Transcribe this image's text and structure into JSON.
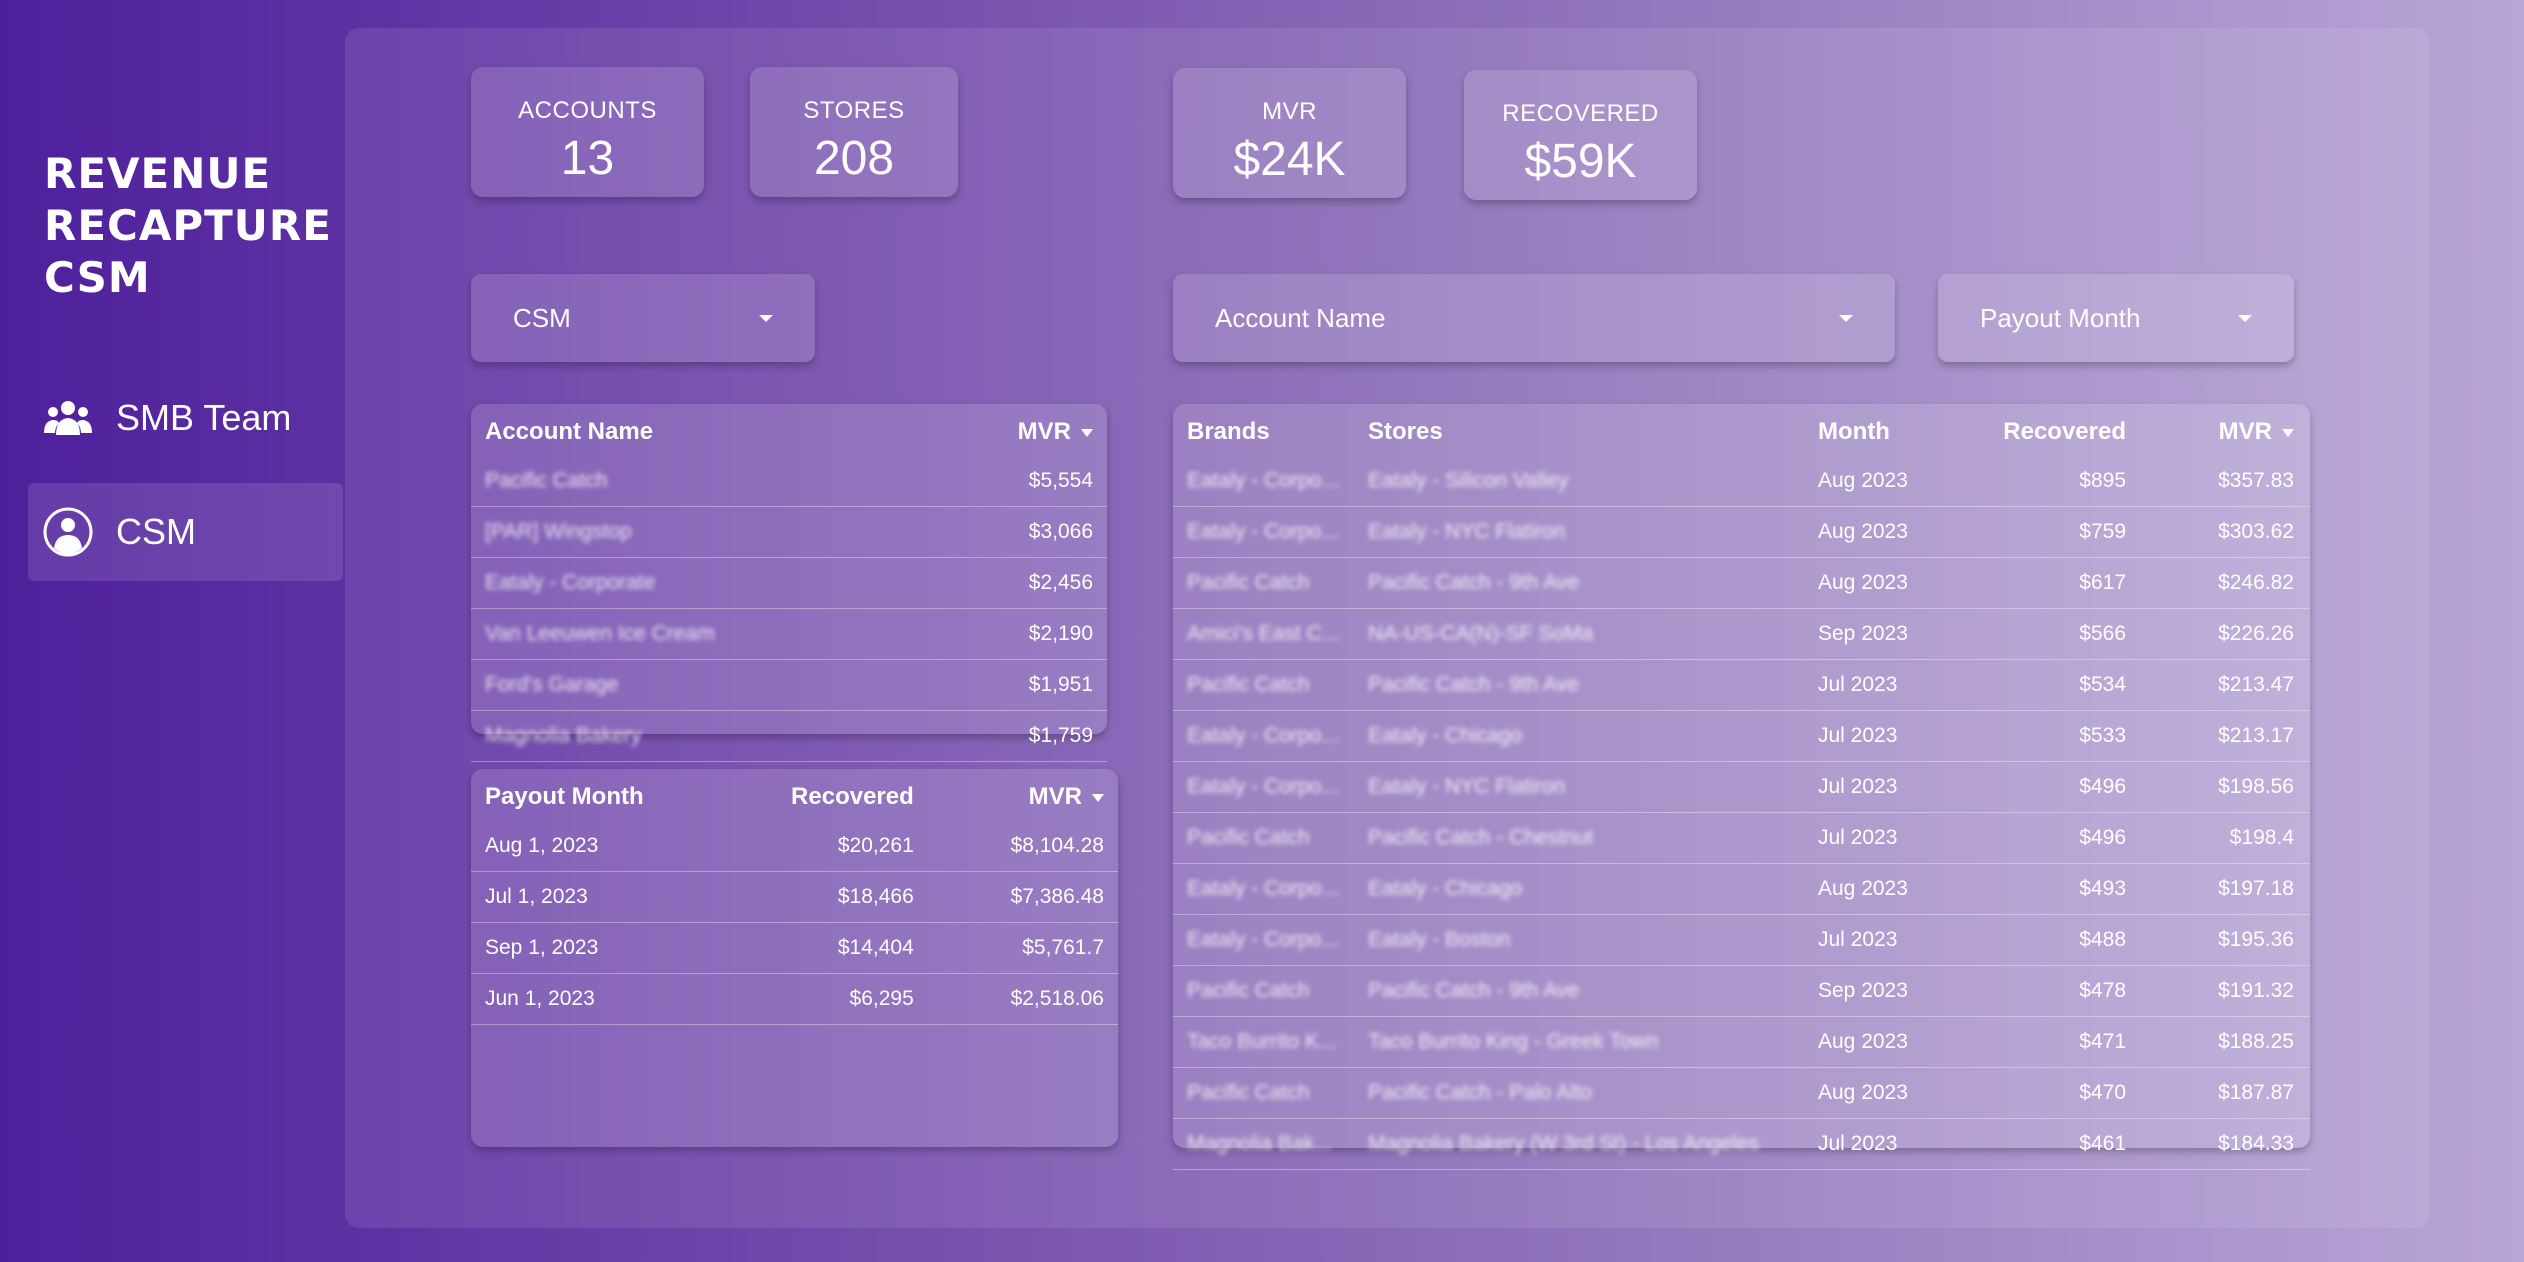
{
  "app": {
    "title": "REVENUE RECAPTURE CSM"
  },
  "nav": {
    "items": [
      {
        "label": "SMB Team",
        "icon": "users-icon"
      },
      {
        "label": "CSM",
        "icon": "user-circle-icon"
      }
    ]
  },
  "kpis": {
    "accounts": {
      "label": "ACCOUNTS",
      "value": "13"
    },
    "stores": {
      "label": "STORES",
      "value": "208"
    },
    "mvr": {
      "label": "MVR",
      "value": "$24K"
    },
    "recovered": {
      "label": "RECOVERED",
      "value": "$59K"
    }
  },
  "filters": {
    "csm": {
      "label": "CSM"
    },
    "account": {
      "label": "Account Name"
    },
    "payout": {
      "label": "Payout Month"
    }
  },
  "account_table": {
    "headers": {
      "account": "Account Name",
      "mvr": "MVR"
    },
    "rows": [
      {
        "account": "Pacific Catch",
        "mvr": "$5,554"
      },
      {
        "account": "[PAR] Wingstop",
        "mvr": "$3,066"
      },
      {
        "account": "Eataly - Corporate",
        "mvr": "$2,456"
      },
      {
        "account": "Van Leeuwen Ice Cream",
        "mvr": "$2,190"
      },
      {
        "account": "Ford's Garage",
        "mvr": "$1,951"
      },
      {
        "account": "Magnolia Bakery",
        "mvr": "$1,759"
      }
    ]
  },
  "payout_table": {
    "headers": {
      "month": "Payout Month",
      "recovered": "Recovered",
      "mvr": "MVR"
    },
    "rows": [
      {
        "month": "Aug 1, 2023",
        "recovered": "$20,261",
        "mvr": "$8,104.28"
      },
      {
        "month": "Jul 1, 2023",
        "recovered": "$18,466",
        "mvr": "$7,386.48"
      },
      {
        "month": "Sep 1, 2023",
        "recovered": "$14,404",
        "mvr": "$5,761.7"
      },
      {
        "month": "Jun 1, 2023",
        "recovered": "$6,295",
        "mvr": "$2,518.06"
      }
    ]
  },
  "store_table": {
    "headers": {
      "brand": "Brands",
      "store": "Stores",
      "month": "Month",
      "recovered": "Recovered",
      "mvr": "MVR"
    },
    "rows": [
      {
        "brand": "Eataly - Corpo...",
        "store": "Eataly - Silicon Valley",
        "month": "Aug 2023",
        "recovered": "$895",
        "mvr": "$357.83"
      },
      {
        "brand": "Eataly - Corpo...",
        "store": "Eataly - NYC Flatiron",
        "month": "Aug 2023",
        "recovered": "$759",
        "mvr": "$303.62"
      },
      {
        "brand": "Pacific Catch",
        "store": "Pacific Catch - 9th Ave",
        "month": "Aug 2023",
        "recovered": "$617",
        "mvr": "$246.82"
      },
      {
        "brand": "Amici's East C...",
        "store": "NA-US-CA(N)-SF SoMa",
        "month": "Sep 2023",
        "recovered": "$566",
        "mvr": "$226.26"
      },
      {
        "brand": "Pacific Catch",
        "store": "Pacific Catch - 9th Ave",
        "month": "Jul 2023",
        "recovered": "$534",
        "mvr": "$213.47"
      },
      {
        "brand": "Eataly - Corpo...",
        "store": "Eataly - Chicago",
        "month": "Jul 2023",
        "recovered": "$533",
        "mvr": "$213.17"
      },
      {
        "brand": "Eataly - Corpo...",
        "store": "Eataly - NYC Flatiron",
        "month": "Jul 2023",
        "recovered": "$496",
        "mvr": "$198.56"
      },
      {
        "brand": "Pacific Catch",
        "store": "Pacific Catch - Chestnut",
        "month": "Jul 2023",
        "recovered": "$496",
        "mvr": "$198.4"
      },
      {
        "brand": "Eataly - Corpo...",
        "store": "Eataly - Chicago",
        "month": "Aug 2023",
        "recovered": "$493",
        "mvr": "$197.18"
      },
      {
        "brand": "Eataly - Corpo...",
        "store": "Eataly - Boston",
        "month": "Jul 2023",
        "recovered": "$488",
        "mvr": "$195.36"
      },
      {
        "brand": "Pacific Catch",
        "store": "Pacific Catch - 9th Ave",
        "month": "Sep 2023",
        "recovered": "$478",
        "mvr": "$191.32"
      },
      {
        "brand": "Taco Burrito K...",
        "store": "Taco Burrito King - Greek Town",
        "month": "Aug 2023",
        "recovered": "$471",
        "mvr": "$188.25"
      },
      {
        "brand": "Pacific Catch",
        "store": "Pacific Catch - Palo Alto",
        "month": "Aug 2023",
        "recovered": "$470",
        "mvr": "$187.87"
      },
      {
        "brand": "Magnolia Bak...",
        "store": "Magnolia Bakery (W 3rd St) - Los Angeles",
        "month": "Jul 2023",
        "recovered": "$461",
        "mvr": "$184.33"
      }
    ]
  }
}
